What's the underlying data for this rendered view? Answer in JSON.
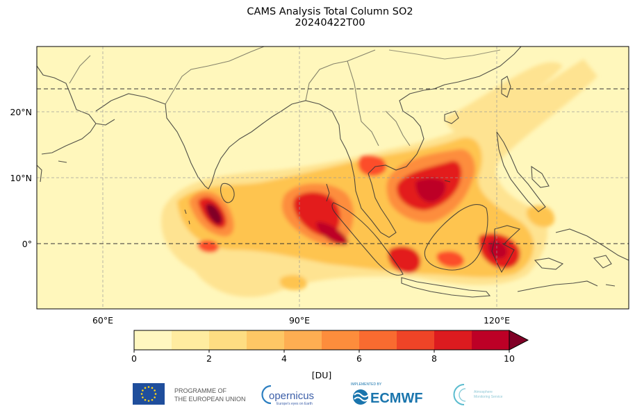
{
  "title": "CAMS Analysis Total Column SO2",
  "subtitle": "20240422T00",
  "map": {
    "lon_ticks": [
      "60°E",
      "90°E",
      "120°E"
    ],
    "lat_ticks": [
      "20°N",
      "10°N",
      "0°"
    ],
    "lon_range": [
      50,
      140
    ],
    "lat_range": [
      -10,
      30
    ]
  },
  "colorbar": {
    "ticks": [
      "0",
      "2",
      "4",
      "6",
      "8",
      "10"
    ],
    "unit": "[DU]",
    "colors": [
      "#fff7c0",
      "#ffeca0",
      "#fedd82",
      "#fec765",
      "#feae52",
      "#fd8d3c",
      "#f96b30",
      "#ee4427",
      "#dc1b1f",
      "#bd0026"
    ]
  },
  "logos": {
    "eu_program": [
      "PROGRAMME OF",
      "THE EUROPEAN UNION"
    ],
    "copernicus": "opernicus",
    "copernicus_tagline": "Europe's eyes on Earth",
    "ecmwf_small": "IMPLEMENTED BY",
    "ecmwf": "ECMWF",
    "cams": [
      "Atmosphere",
      "Monitoring Service"
    ]
  }
}
